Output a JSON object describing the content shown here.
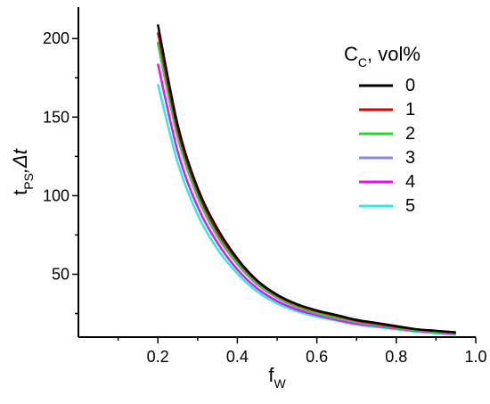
{
  "chart_data": {
    "type": "line",
    "title": "",
    "xlabel": {
      "main": "f",
      "sub": "W"
    },
    "ylabel": {
      "main": "t",
      "sub": "PS",
      "rest": ",Δt"
    },
    "xlim": [
      0.0,
      1.0
    ],
    "ylim": [
      10,
      220
    ],
    "x_ticks": [
      0.2,
      0.4,
      0.6,
      0.8,
      1.0
    ],
    "x_tick_labels": [
      "0.2",
      "0.4",
      "0.6",
      "0.8",
      "1.0"
    ],
    "y_ticks": [
      50,
      100,
      150,
      200
    ],
    "y_tick_labels": [
      "50",
      "100",
      "150",
      "200"
    ],
    "grid": false,
    "legend": {
      "title": {
        "main": "C",
        "sub": "C",
        "rest": ", vol%"
      },
      "position": "top-right"
    },
    "x": [
      0.2,
      0.25,
      0.3,
      0.35,
      0.4,
      0.45,
      0.5,
      0.55,
      0.6,
      0.65,
      0.7,
      0.75,
      0.8,
      0.85,
      0.9,
      0.95
    ],
    "series": [
      {
        "name": "0",
        "color": "#000000",
        "values": [
          209,
          145,
          105,
          79,
          60,
          46,
          37,
          31,
          27,
          24,
          21,
          19,
          17,
          15,
          14,
          13
        ]
      },
      {
        "name": "1",
        "color": "#e00000",
        "values": [
          204,
          142,
          103,
          77,
          59,
          45.5,
          36.5,
          30.5,
          26.5,
          23.5,
          20.5,
          18.5,
          16.5,
          15,
          14,
          13
        ]
      },
      {
        "name": "2",
        "color": "#22dd22",
        "values": [
          198,
          138,
          100,
          75,
          57,
          44,
          35.5,
          29.5,
          25.5,
          22.5,
          20,
          18,
          16,
          14.5,
          13.5,
          12.5
        ]
      },
      {
        "name": "3",
        "color": "#8888dd",
        "values": [
          197,
          137,
          99,
          74,
          56.5,
          43.5,
          35,
          29,
          25,
          22,
          19.5,
          17.5,
          16,
          14.5,
          13.5,
          12.5
        ]
      },
      {
        "name": "4",
        "color": "#ee11ee",
        "values": [
          184,
          128,
          93,
          70,
          53,
          41,
          33,
          27.5,
          24,
          21,
          18.5,
          17,
          15.5,
          14,
          13,
          12
        ]
      },
      {
        "name": "5",
        "color": "#22eeee",
        "values": [
          171,
          121,
          88,
          66,
          50.5,
          39,
          31.5,
          26.5,
          23,
          20.5,
          18,
          16.5,
          15,
          13.5,
          12.5,
          11.5
        ]
      }
    ]
  }
}
